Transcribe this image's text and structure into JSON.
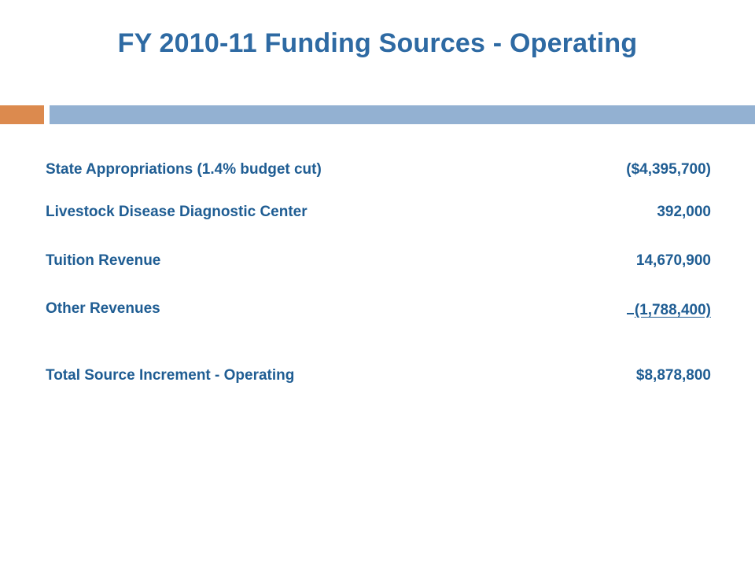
{
  "slide": {
    "title": "FY 2010-11 Funding Sources - Operating"
  },
  "funding_sources": [
    {
      "label": "State Appropriations (1.4% budget cut)",
      "amount": "($4,395,700)"
    },
    {
      "label": "Livestock Disease Diagnostic Center",
      "amount": "392,000"
    },
    {
      "label": "Tuition Revenue",
      "amount": "14,670,900"
    },
    {
      "label": "Other Revenues",
      "amount": "(1,788,400)"
    }
  ],
  "total": {
    "label": "Total Source Increment - Operating",
    "amount": "$8,878,800"
  },
  "colors": {
    "title": "#2e6aa3",
    "text": "#1f5d93",
    "accent_orange": "#dc8a4e",
    "accent_blue": "#93b1d2"
  }
}
